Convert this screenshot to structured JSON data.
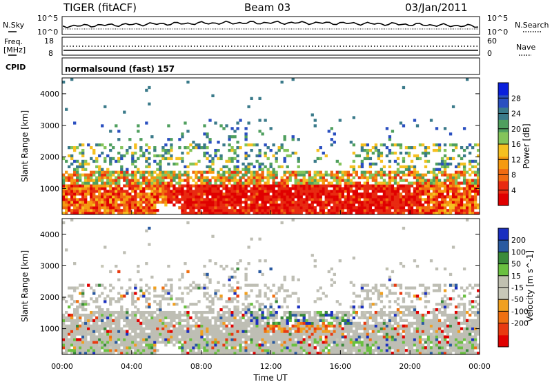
{
  "header": {
    "radar": "TIGER (fitACF)",
    "beam": "Beam 03",
    "date": "03/Jan/2011"
  },
  "panels": {
    "nsky": {
      "left_label": "N.Sky",
      "left_ticks": [
        "10^5",
        "10^0"
      ],
      "right_ticks": [
        "10^5",
        "10^0"
      ],
      "right_label": "N.Search"
    },
    "freq": {
      "left_label_1": "Freq.",
      "left_label_2": "[MHz]",
      "left_ticks": [
        "18",
        "8"
      ],
      "right_ticks": [
        "60",
        "0"
      ],
      "right_label": "Nave"
    },
    "cpid": {
      "label": "CPID",
      "text": "normalsound (fast)  157"
    }
  },
  "colors": {
    "power": [
      "#0a1fdc",
      "#2a4fc0",
      "#3a7a8a",
      "#4f9f5e",
      "#84c45a",
      "#f5c020",
      "#f59a10",
      "#f06a10",
      "#e82a10",
      "#e00000"
    ],
    "velocity": [
      "#1a2fc0",
      "#2a5aa0",
      "#3a8a3a",
      "#6ac040",
      "#c0c0b0",
      "#c8c8b8",
      "#f0a020",
      "#f07010",
      "#e83a10",
      "#e00000"
    ],
    "ground_scatter": "#bebeb4"
  },
  "chart_data": [
    {
      "type": "heatmap",
      "title": "Power",
      "ylabel": "Slant Range [km]",
      "xlabel": "",
      "y_ticks": [
        "4000",
        "3000",
        "2000",
        "1000"
      ],
      "ylim": [
        180,
        4500
      ],
      "colorbar": {
        "label": "Power [dB]",
        "ticks": [
          "28",
          "24",
          "20",
          "16",
          "12",
          "8",
          "4"
        ],
        "range": [
          0,
          32
        ]
      }
    },
    {
      "type": "heatmap",
      "title": "Velocity",
      "ylabel": "Slant Range [km]",
      "xlabel": "Time UT",
      "y_ticks": [
        "4000",
        "3000",
        "2000",
        "1000"
      ],
      "x_ticks": [
        "00:00",
        "04:00",
        "08:00",
        "12:00",
        "16:00",
        "20:00",
        "00:00"
      ],
      "ylim": [
        180,
        4500
      ],
      "colorbar": {
        "label": "Velocity [m s^-1]",
        "ticks": [
          "200",
          "100",
          "50",
          "15",
          "-15",
          "-50",
          "-100",
          "-200"
        ]
      }
    }
  ]
}
